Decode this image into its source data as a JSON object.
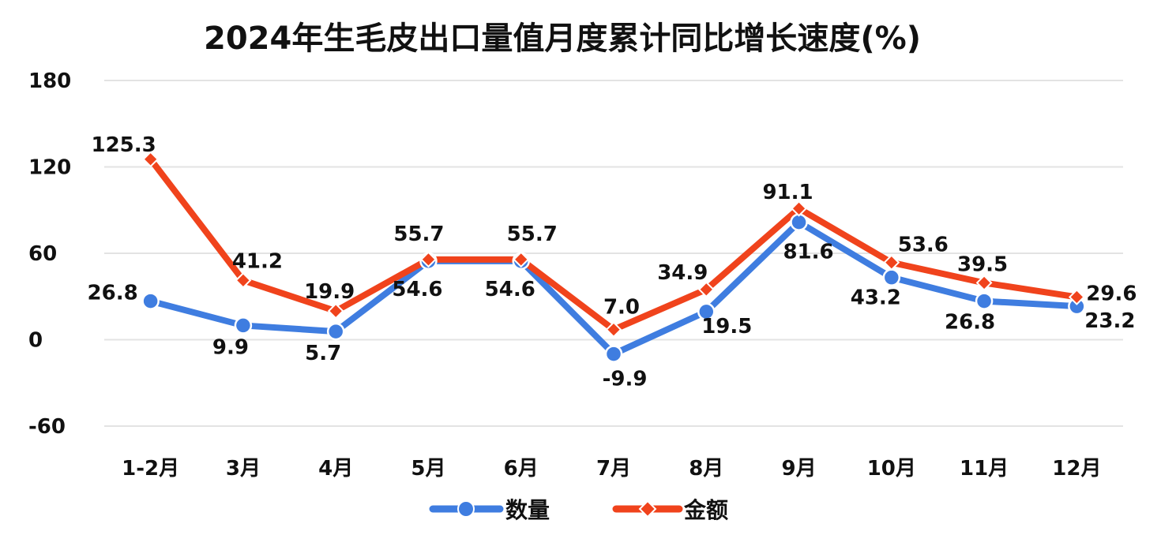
{
  "chart_data": {
    "type": "line",
    "title": "2024年生毛皮出口量值月度累计同比增长速度(%)",
    "categories": [
      "1-2月",
      "3月",
      "4月",
      "5月",
      "6月",
      "7月",
      "8月",
      "9月",
      "10月",
      "11月",
      "12月"
    ],
    "series": [
      {
        "name": "数量",
        "color": "#3f7de0",
        "marker": "circle",
        "values": [
          26.8,
          9.9,
          5.7,
          54.6,
          54.6,
          -9.9,
          19.5,
          81.6,
          43.2,
          26.8,
          23.2
        ],
        "labels": [
          "26.8",
          "9.9",
          "5.7",
          "54.6",
          "54.6",
          "-9.9",
          "19.5",
          "81.6",
          "43.2",
          "26.8",
          "23.2"
        ]
      },
      {
        "name": "金额",
        "color": "#f0431c",
        "marker": "diamond",
        "values": [
          125.3,
          41.2,
          19.9,
          55.7,
          55.7,
          7.0,
          34.9,
          91.1,
          53.6,
          39.5,
          29.6
        ],
        "labels": [
          "125.3",
          "41.2",
          "19.9",
          "55.7",
          "55.7",
          "7.0",
          "34.9",
          "91.1",
          "53.6",
          "39.5",
          "29.6"
        ]
      }
    ],
    "ylim": [
      -60,
      180
    ],
    "yticks": [
      "180",
      "120",
      "60",
      "0",
      "-60"
    ],
    "grid": true,
    "legend": "bottom"
  }
}
